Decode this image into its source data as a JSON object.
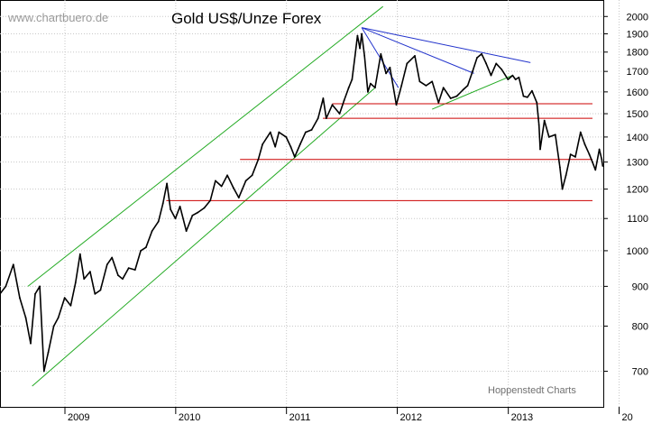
{
  "chart_data": {
    "type": "line",
    "title": "Gold US$/Unze Forex",
    "watermark": "www.chartbuero.de",
    "credit": "Hoppenstedt Charts",
    "y_scale": "log",
    "ylim": [
      630,
      2100
    ],
    "y_ticks": [
      700,
      800,
      900,
      1000,
      1100,
      1200,
      1300,
      1400,
      1500,
      1600,
      1700,
      1800,
      1900,
      2000
    ],
    "xlim": [
      "2008-06-01",
      "2013-11-10"
    ],
    "x_ticks": [
      {
        "label": "2009",
        "date": "2009-01-01"
      },
      {
        "label": "2010",
        "date": "2010-01-01"
      },
      {
        "label": "2011",
        "date": "2011-01-01"
      },
      {
        "label": "2012",
        "date": "2012-01-01"
      },
      {
        "label": "2013",
        "date": "2013-01-01"
      },
      {
        "label": "20",
        "date": "2014-01-01"
      }
    ],
    "grid": true,
    "series": [
      {
        "points": [
          [
            "2008-06-01",
            880
          ],
          [
            "2008-06-20",
            900
          ],
          [
            "2008-07-15",
            960
          ],
          [
            "2008-08-05",
            870
          ],
          [
            "2008-08-25",
            820
          ],
          [
            "2008-09-10",
            760
          ],
          [
            "2008-09-25",
            880
          ],
          [
            "2008-10-10",
            900
          ],
          [
            "2008-10-24",
            700
          ],
          [
            "2008-11-07",
            740
          ],
          [
            "2008-11-25",
            800
          ],
          [
            "2008-12-10",
            820
          ],
          [
            "2008-12-31",
            870
          ],
          [
            "2009-01-20",
            850
          ],
          [
            "2009-02-05",
            910
          ],
          [
            "2009-02-20",
            990
          ],
          [
            "2009-03-05",
            920
          ],
          [
            "2009-03-25",
            940
          ],
          [
            "2009-04-10",
            880
          ],
          [
            "2009-04-28",
            890
          ],
          [
            "2009-05-20",
            960
          ],
          [
            "2009-06-05",
            980
          ],
          [
            "2009-06-25",
            930
          ],
          [
            "2009-07-10",
            920
          ],
          [
            "2009-07-30",
            950
          ],
          [
            "2009-08-20",
            945
          ],
          [
            "2009-09-08",
            1000
          ],
          [
            "2009-09-25",
            1010
          ],
          [
            "2009-10-15",
            1060
          ],
          [
            "2009-11-05",
            1090
          ],
          [
            "2009-11-20",
            1150
          ],
          [
            "2009-12-03",
            1220
          ],
          [
            "2009-12-15",
            1130
          ],
          [
            "2009-12-31",
            1100
          ],
          [
            "2010-01-15",
            1140
          ],
          [
            "2010-02-05",
            1060
          ],
          [
            "2010-02-25",
            1110
          ],
          [
            "2010-03-15",
            1120
          ],
          [
            "2010-04-05",
            1135
          ],
          [
            "2010-04-25",
            1160
          ],
          [
            "2010-05-12",
            1230
          ],
          [
            "2010-06-01",
            1210
          ],
          [
            "2010-06-20",
            1250
          ],
          [
            "2010-07-10",
            1205
          ],
          [
            "2010-07-28",
            1170
          ],
          [
            "2010-08-20",
            1230
          ],
          [
            "2010-09-10",
            1250
          ],
          [
            "2010-09-30",
            1310
          ],
          [
            "2010-10-14",
            1370
          ],
          [
            "2010-11-09",
            1420
          ],
          [
            "2010-11-25",
            1360
          ],
          [
            "2010-12-07",
            1420
          ],
          [
            "2010-12-31",
            1400
          ],
          [
            "2011-01-15",
            1360
          ],
          [
            "2011-01-28",
            1320
          ],
          [
            "2011-02-15",
            1370
          ],
          [
            "2011-03-05",
            1420
          ],
          [
            "2011-03-25",
            1430
          ],
          [
            "2011-04-15",
            1480
          ],
          [
            "2011-05-02",
            1570
          ],
          [
            "2011-05-12",
            1480
          ],
          [
            "2011-06-01",
            1540
          ],
          [
            "2011-06-25",
            1500
          ],
          [
            "2011-07-10",
            1560
          ],
          [
            "2011-07-25",
            1620
          ],
          [
            "2011-08-05",
            1660
          ],
          [
            "2011-08-15",
            1780
          ],
          [
            "2011-08-23",
            1890
          ],
          [
            "2011-08-31",
            1820
          ],
          [
            "2011-09-06",
            1900
          ],
          [
            "2011-09-15",
            1780
          ],
          [
            "2011-09-26",
            1600
          ],
          [
            "2011-10-05",
            1640
          ],
          [
            "2011-10-20",
            1620
          ],
          [
            "2011-11-08",
            1790
          ],
          [
            "2011-11-25",
            1690
          ],
          [
            "2011-12-08",
            1720
          ],
          [
            "2011-12-29",
            1540
          ],
          [
            "2012-01-15",
            1630
          ],
          [
            "2012-02-02",
            1740
          ],
          [
            "2012-02-28",
            1780
          ],
          [
            "2012-03-15",
            1650
          ],
          [
            "2012-04-05",
            1630
          ],
          [
            "2012-04-25",
            1650
          ],
          [
            "2012-05-16",
            1550
          ],
          [
            "2012-06-01",
            1620
          ],
          [
            "2012-06-25",
            1570
          ],
          [
            "2012-07-15",
            1580
          ],
          [
            "2012-08-05",
            1610
          ],
          [
            "2012-08-20",
            1630
          ],
          [
            "2012-09-05",
            1700
          ],
          [
            "2012-09-20",
            1770
          ],
          [
            "2012-10-05",
            1790
          ],
          [
            "2012-10-20",
            1740
          ],
          [
            "2012-11-05",
            1680
          ],
          [
            "2012-11-22",
            1740
          ],
          [
            "2012-12-10",
            1710
          ],
          [
            "2012-12-31",
            1660
          ],
          [
            "2013-01-15",
            1680
          ],
          [
            "2013-01-25",
            1660
          ],
          [
            "2013-02-05",
            1670
          ],
          [
            "2013-02-20",
            1580
          ],
          [
            "2013-03-05",
            1575
          ],
          [
            "2013-03-20",
            1605
          ],
          [
            "2013-04-05",
            1550
          ],
          [
            "2013-04-12",
            1450
          ],
          [
            "2013-04-16",
            1350
          ],
          [
            "2013-04-30",
            1470
          ],
          [
            "2013-05-15",
            1400
          ],
          [
            "2013-06-05",
            1410
          ],
          [
            "2013-06-20",
            1280
          ],
          [
            "2013-06-28",
            1200
          ],
          [
            "2013-07-10",
            1250
          ],
          [
            "2013-07-25",
            1330
          ],
          [
            "2013-08-10",
            1320
          ],
          [
            "2013-08-27",
            1420
          ],
          [
            "2013-09-10",
            1370
          ],
          [
            "2013-09-25",
            1330
          ],
          [
            "2013-10-05",
            1300
          ],
          [
            "2013-10-15",
            1270
          ],
          [
            "2013-10-28",
            1350
          ],
          [
            "2013-11-05",
            1310
          ],
          [
            "2013-11-08",
            1285
          ]
        ]
      }
    ],
    "annotations": [
      {
        "kind": "trendline",
        "color": "#22aa22",
        "from": [
          "2008-09-15",
          670
        ],
        "to": [
          "2011-10-20",
          1620
        ]
      },
      {
        "kind": "trendline",
        "color": "#22aa22",
        "from": [
          "2008-09-01",
          900
        ],
        "to": [
          "2011-11-15",
          2060
        ]
      },
      {
        "kind": "trendline",
        "color": "#22aa22",
        "from": [
          "2012-04-25",
          1520
        ],
        "to": [
          "2013-01-15",
          1680
        ]
      },
      {
        "kind": "trendline",
        "color": "#2233cc",
        "from": [
          "2011-09-06",
          1935
        ],
        "to": [
          "2013-03-15",
          1745
        ]
      },
      {
        "kind": "trendline",
        "color": "#2233cc",
        "from": [
          "2011-09-06",
          1935
        ],
        "to": [
          "2012-09-10",
          1690
        ]
      },
      {
        "kind": "trendline",
        "color": "#2233cc",
        "from": [
          "2011-09-06",
          1935
        ],
        "to": [
          "2012-01-05",
          1620
        ]
      },
      {
        "kind": "hline",
        "color": "#cc0000",
        "value": 1545,
        "from": "2011-06-01",
        "to": "2013-11-10"
      },
      {
        "kind": "hline",
        "color": "#cc0000",
        "value": 1480,
        "from": "2011-05-01",
        "to": "2013-11-10"
      },
      {
        "kind": "hline",
        "color": "#cc0000",
        "value": 1310,
        "from": "2010-08-01",
        "to": "2013-11-10"
      },
      {
        "kind": "hline",
        "color": "#cc0000",
        "value": 1160,
        "from": "2009-12-01",
        "to": "2013-11-10"
      }
    ]
  }
}
